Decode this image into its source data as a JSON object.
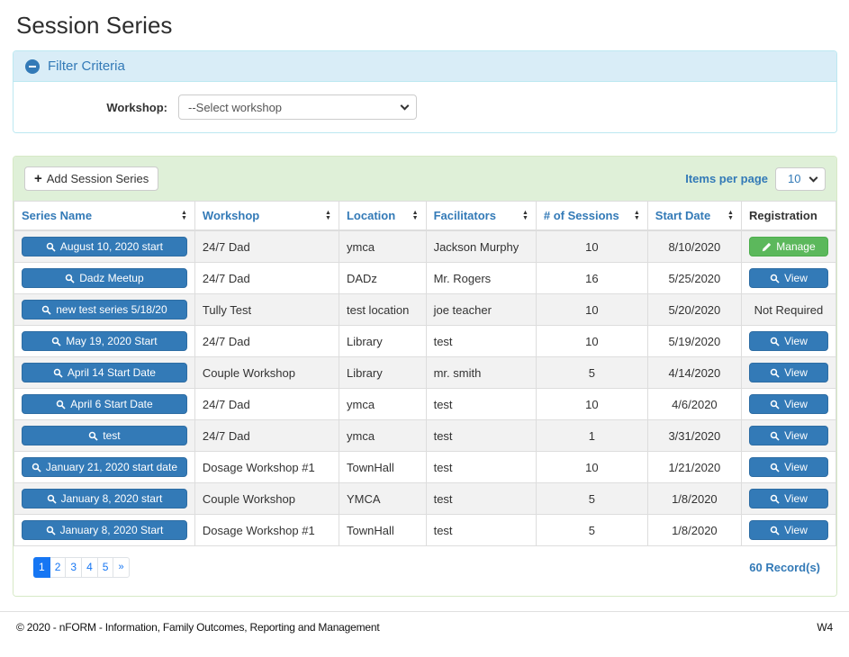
{
  "page": {
    "title": "Session Series",
    "footer": {
      "copyright": "© 2020 - nFORM - Information, Family Outcomes, Reporting and Management",
      "version": "W4"
    }
  },
  "filter": {
    "title": "Filter Criteria",
    "workshop_label": "Workshop:",
    "workshop_selected": "--Select workshop"
  },
  "toolbar": {
    "add_button_label": "Add Session Series",
    "items_per_page_label": "Items per page",
    "items_per_page_value": "10"
  },
  "icons": {
    "collapse": "minus-circle",
    "add": "plus",
    "search": "magnifying-glass",
    "manage": "pencil",
    "sort": "up-down-arrows",
    "dropdown": "chevron-down"
  },
  "colors": {
    "primary_blue": "#337ab7",
    "success_green": "#5cb85c",
    "info_panel_bg": "#d9edf7",
    "info_panel_border": "#bce8f1",
    "success_panel_bg": "#dff0d8",
    "success_panel_border": "#d6e9c6",
    "row_stripe": "#f2f2f2",
    "pagination_active": "#1676f3"
  },
  "table": {
    "columns": [
      {
        "label": "Series Name",
        "sortable": true
      },
      {
        "label": "Workshop",
        "sortable": true
      },
      {
        "label": "Location",
        "sortable": true
      },
      {
        "label": "Facilitators",
        "sortable": true
      },
      {
        "label": "# of Sessions",
        "sortable": true
      },
      {
        "label": "Start Date",
        "sortable": true
      },
      {
        "label": "Registration",
        "sortable": false
      }
    ],
    "rows": [
      {
        "series_name": "August 10, 2020 start",
        "workshop": "24/7 Dad",
        "location": "ymca",
        "facilitators": "Jackson Murphy",
        "sessions": "10",
        "start_date": "8/10/2020",
        "registration": {
          "type": "manage",
          "label": "Manage"
        }
      },
      {
        "series_name": "Dadz Meetup",
        "workshop": "24/7 Dad",
        "location": "DADz",
        "facilitators": "Mr. Rogers",
        "sessions": "16",
        "start_date": "5/25/2020",
        "registration": {
          "type": "view",
          "label": "View"
        }
      },
      {
        "series_name": "new test series 5/18/20",
        "workshop": "Tully Test",
        "location": "test location",
        "facilitators": "joe teacher",
        "sessions": "10",
        "start_date": "5/20/2020",
        "registration": {
          "type": "text",
          "label": "Not Required"
        }
      },
      {
        "series_name": "May 19, 2020 Start",
        "workshop": "24/7 Dad",
        "location": "Library",
        "facilitators": "test",
        "sessions": "10",
        "start_date": "5/19/2020",
        "registration": {
          "type": "view",
          "label": "View"
        }
      },
      {
        "series_name": "April 14 Start Date",
        "workshop": "Couple Workshop",
        "location": "Library",
        "facilitators": "mr. smith",
        "sessions": "5",
        "start_date": "4/14/2020",
        "registration": {
          "type": "view",
          "label": "View"
        }
      },
      {
        "series_name": "April 6 Start Date",
        "workshop": "24/7 Dad",
        "location": "ymca",
        "facilitators": "test",
        "sessions": "10",
        "start_date": "4/6/2020",
        "registration": {
          "type": "view",
          "label": "View"
        }
      },
      {
        "series_name": "test",
        "workshop": "24/7 Dad",
        "location": "ymca",
        "facilitators": "test",
        "sessions": "1",
        "start_date": "3/31/2020",
        "registration": {
          "type": "view",
          "label": "View"
        }
      },
      {
        "series_name": "January 21, 2020 start date",
        "workshop": "Dosage Workshop #1",
        "location": "TownHall",
        "facilitators": "test",
        "sessions": "10",
        "start_date": "1/21/2020",
        "registration": {
          "type": "view",
          "label": "View"
        }
      },
      {
        "series_name": "January 8, 2020 start",
        "workshop": "Couple Workshop",
        "location": "YMCA",
        "facilitators": "test",
        "sessions": "5",
        "start_date": "1/8/2020",
        "registration": {
          "type": "view",
          "label": "View"
        }
      },
      {
        "series_name": "January 8, 2020 Start",
        "workshop": "Dosage Workshop #1",
        "location": "TownHall",
        "facilitators": "test",
        "sessions": "5",
        "start_date": "1/8/2020",
        "registration": {
          "type": "view",
          "label": "View"
        }
      }
    ]
  },
  "pagination": {
    "pages": [
      "1",
      "2",
      "3",
      "4",
      "5"
    ],
    "active": "1",
    "next": "»",
    "record_count": "60 Record(s)"
  }
}
